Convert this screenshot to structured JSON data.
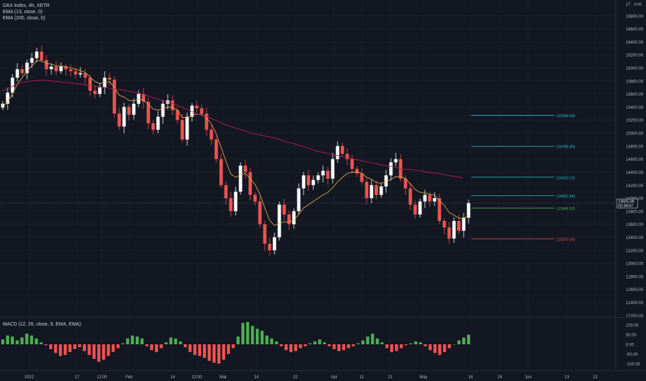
{
  "window": {
    "currency": "EUR"
  },
  "legend": {
    "title": "DAX Index, 4h, XETR",
    "ema13": "EMA (13, close, 0)",
    "ema200": "EMA (200, close, 0)",
    "macd": "MACD (12, 26, close, 9, EMA, EMA)"
  },
  "price_tag": {
    "value": "13925.09",
    "countdown": "02:34:57"
  },
  "chart_data": [
    {
      "type": "candlestick",
      "title": "DAX Index, 4h, XETR",
      "y_ticks": [
        12200,
        12400,
        12600,
        12800,
        13000,
        13200,
        13400,
        13600,
        13800,
        14000,
        14200,
        14400,
        14600,
        14800,
        15000,
        15200,
        15400,
        15600,
        15800,
        16000,
        16200,
        16400,
        16600,
        16800
      ],
      "y_tick_labels": [
        "12200.00",
        "12400.00",
        "12600.00",
        "12800.00",
        "13000.00",
        "13200.00",
        "13400.00",
        "13600.00",
        "13800.00",
        "14000.00",
        "14200.00",
        "14400.00",
        "14600.00",
        "14800.00",
        "15000.00",
        "15200.00",
        "15400.00",
        "15600.00",
        "15800.00",
        "16000.00",
        "16200.00",
        "16400.00",
        "16600.00",
        "16800.00"
      ],
      "top_tick_label": "17",
      "ylim": [
        12150,
        17000
      ],
      "x_tick_labels": [
        "2022",
        "17",
        "12:00",
        "Feb",
        "14",
        "12:00",
        "Mar",
        "14",
        "22",
        "Apr",
        "11",
        "21",
        "May",
        "16",
        "24",
        "Jun",
        "13",
        "21"
      ],
      "close_series": [
        15450,
        15620,
        15850,
        15980,
        15920,
        16080,
        16150,
        16250,
        16120,
        15980,
        16020,
        15950,
        16020,
        15980,
        15950,
        15900,
        15920,
        15850,
        15650,
        15600,
        15700,
        15850,
        15820,
        15300,
        15100,
        15400,
        15280,
        15450,
        15600,
        15480,
        15150,
        15050,
        15250,
        15450,
        15500,
        15350,
        15200,
        14900,
        15250,
        15420,
        15380,
        15300,
        15050,
        14900,
        14600,
        14200,
        14000,
        13800,
        14100,
        14500,
        14400,
        14050,
        13950,
        13600,
        13300,
        13200,
        13400,
        13900,
        13750,
        13600,
        13800,
        14150,
        14350,
        14200,
        14280,
        14350,
        14420,
        14300,
        14600,
        14800,
        14680,
        14600,
        14450,
        14380,
        14250,
        14000,
        14200,
        14050,
        14180,
        14350,
        14550,
        14600,
        14300,
        14150,
        13900,
        13750,
        13950,
        14050,
        13950,
        14000,
        13650,
        13550,
        13380,
        13650,
        13500,
        13700,
        13925
      ],
      "ema13_series": [
        15400,
        15480,
        15600,
        15750,
        15850,
        15950,
        16030,
        16110,
        16110,
        16070,
        16060,
        16030,
        16030,
        16020,
        16000,
        15980,
        15960,
        15930,
        15860,
        15790,
        15760,
        15780,
        15790,
        15700,
        15580,
        15550,
        15500,
        15490,
        15520,
        15510,
        15440,
        15370,
        15350,
        15370,
        15400,
        15390,
        15350,
        15240,
        15240,
        15270,
        15290,
        15290,
        15230,
        15140,
        14990,
        14780,
        14570,
        14370,
        14320,
        14360,
        14380,
        14300,
        14210,
        14060,
        13850,
        13660,
        13580,
        13620,
        13630,
        13640,
        13660,
        13750,
        13850,
        13900,
        13950,
        14000,
        14050,
        14090,
        14160,
        14250,
        14320,
        14380,
        14400,
        14400,
        14380,
        14320,
        14290,
        14240,
        14230,
        14250,
        14290,
        14330,
        14330,
        14300,
        14220,
        14130,
        14090,
        14080,
        14060,
        14050,
        13960,
        13890,
        13780,
        13740,
        13690,
        13690,
        13730
      ],
      "ema200_series": [
        15650,
        15690,
        15740,
        15770,
        15790,
        15800,
        15810,
        15810,
        15800,
        15790,
        15780,
        15770,
        15760,
        15750,
        15730,
        15720,
        15710,
        15700,
        15680,
        15670,
        15660,
        15640,
        15620,
        15600,
        15570,
        15540,
        15510,
        15480,
        15460,
        15420,
        15380,
        15340,
        15300,
        15270,
        15240,
        15200,
        15160,
        15120,
        15090,
        15060,
        15030,
        15000,
        14980,
        14960,
        14940,
        14920,
        14890,
        14860,
        14840,
        14810,
        14780,
        14750,
        14720,
        14700,
        14680,
        14660,
        14640,
        14620,
        14600,
        14580,
        14560,
        14540,
        14520,
        14500,
        14490,
        14470,
        14450,
        14440,
        14430,
        14420,
        14400,
        14390,
        14380,
        14360,
        14340,
        14330,
        14310
      ],
      "horizontal_levels": [
        {
          "value": 15269.69,
          "label": "(15269.69)",
          "color": "#26c6da"
        },
        {
          "value": 14795.99,
          "label": "(14795.99)",
          "color": "#26c6da"
        },
        {
          "value": 14322.12,
          "label": "(14322.12)",
          "color": "#26c6da"
        },
        {
          "value": 14037.84,
          "label": "(14037.84)",
          "color": "#26c6da"
        },
        {
          "value": 13848.33,
          "label": "(13848.33)",
          "color": "#4caf50"
        },
        {
          "value": 13374.54,
          "label": "(13374.54)",
          "color": "#ef5350"
        }
      ],
      "current_price": 13925.09,
      "colors": {
        "up": "#ffffff",
        "down": "#ef5350",
        "ema13": "#e0a84a",
        "ema200": "#c2185b",
        "grid": "#1f2330"
      }
    },
    {
      "type": "histogram",
      "title": "MACD (12, 26, close, 9, EMA, EMA)",
      "y_ticks": [
        100,
        50,
        0,
        -50,
        -100
      ],
      "y_tick_labels": [
        "100.00",
        "50.00",
        "0.00",
        "-50.00",
        "-100.00"
      ],
      "ylim": [
        -125,
        125
      ],
      "values": [
        25,
        45,
        40,
        20,
        35,
        55,
        45,
        30,
        10,
        -5,
        -25,
        -45,
        -60,
        -55,
        -40,
        -25,
        -15,
        -35,
        -55,
        -75,
        -90,
        -80,
        -60,
        -40,
        -20,
        5,
        30,
        45,
        40,
        30,
        -10,
        -30,
        -40,
        -20,
        10,
        35,
        30,
        15,
        -15,
        -40,
        -55,
        -60,
        -70,
        -85,
        -95,
        -100,
        -80,
        -50,
        -20,
        40,
        110,
        115,
        95,
        80,
        70,
        45,
        30,
        15,
        -10,
        -30,
        -40,
        -35,
        -20,
        -10,
        5,
        15,
        25,
        10,
        -10,
        -25,
        -35,
        -30,
        -20,
        -10,
        5,
        20,
        40,
        55,
        30,
        10,
        -20,
        -40,
        -35,
        -20,
        -5,
        5,
        15,
        10,
        -10,
        -30,
        -45,
        -55,
        -40,
        -20,
        0,
        20,
        35,
        50
      ],
      "colors": {
        "pos": "#4caf50",
        "neg": "#ef5350"
      }
    }
  ]
}
